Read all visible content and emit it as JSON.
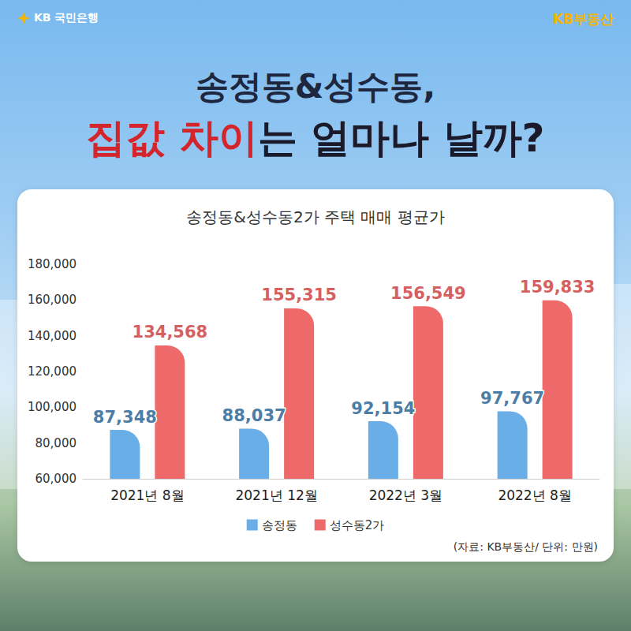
{
  "header": {
    "logo_left": "KB 국민은행",
    "logo_right": "KB부동산",
    "title_line1": "송정동&성수동,",
    "title_line2": [
      {
        "text": "집값 차이",
        "color": "#d3252b"
      },
      {
        "text": "는 얼마나 날까?",
        "color": "#1a1a2a"
      }
    ]
  },
  "chart_data": {
    "type": "bar",
    "title": "송정동&성수동2가 주택 매매 평균가",
    "categories": [
      "2021년 8월",
      "2021년 12월",
      "2022년 3월",
      "2022년 8월"
    ],
    "series": [
      {
        "name": "송정동",
        "color": "#6aaee8",
        "values": [
          87348,
          88037,
          92154,
          97767
        ],
        "value_labels": [
          "87,348",
          "88,037",
          "92,154",
          "97,767"
        ]
      },
      {
        "name": "성수동2가",
        "color": "#ee6a6a",
        "values": [
          134568,
          155315,
          156549,
          159833
        ],
        "value_labels": [
          "134,568",
          "155,315",
          "156,549",
          "159,833"
        ]
      }
    ],
    "ylim": [
      60000,
      180000
    ],
    "yticks": [
      {
        "value": 60000,
        "label": "60,000"
      },
      {
        "value": 80000,
        "label": "80,000"
      },
      {
        "value": 100000,
        "label": "100,000"
      },
      {
        "value": 120000,
        "label": "120,000"
      },
      {
        "value": 140000,
        "label": "140,000"
      },
      {
        "value": 160000,
        "label": "160,000"
      },
      {
        "value": 180000,
        "label": "180,000"
      }
    ],
    "grid": false,
    "legend": "bottom",
    "data_labels": true,
    "annotations": [
      "(자료: KB부동산/ 단위: 만원)"
    ]
  }
}
